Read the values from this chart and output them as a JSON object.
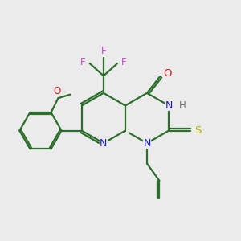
{
  "bg_color": "#ebebeb",
  "bond_color": "#2d6e2d",
  "bond_width": 1.6,
  "atom_colors": {
    "N": "#1a1acc",
    "O": "#cc1a1a",
    "S": "#b8b800",
    "F": "#cc44cc",
    "H": "#707070",
    "C": "#2d6e2d"
  },
  "figsize": [
    3.0,
    3.0
  ],
  "dpi": 100
}
